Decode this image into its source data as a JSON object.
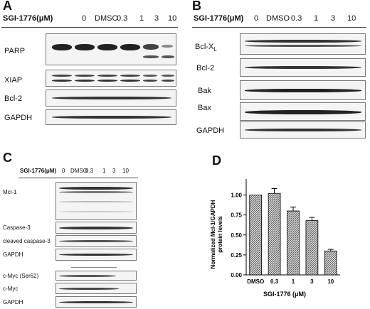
{
  "panel_a": {
    "letter": "A",
    "treatment_label": "SGI-1776(μM)",
    "lanes": [
      "0",
      "DMSO",
      "0.3",
      "1",
      "3",
      "10"
    ],
    "proteins": [
      "PARP",
      "XIAP",
      "Bcl-2",
      "GAPDH"
    ]
  },
  "panel_b": {
    "letter": "B",
    "treatment_label": "SGI-1776(μM)",
    "lanes": [
      "0",
      "DMSO",
      "0.3",
      "1",
      "3",
      "10"
    ],
    "proteins": [
      "Bcl-X",
      "Bcl-2",
      "Bak",
      "Bax",
      "GAPDH"
    ],
    "bclx_subscript": "L"
  },
  "panel_c": {
    "letter": "C",
    "treatment_label": "SGI-1776(μM)",
    "lanes": [
      "0",
      "DMSO",
      "0.3",
      "1",
      "3",
      "10"
    ],
    "proteins": [
      "Mcl-1",
      "Caspase-3",
      "cleaved caspase-3",
      "GAPDH",
      "c-Myc (Ser62)",
      "c-Myc",
      "GAPDH"
    ]
  },
  "panel_d": {
    "letter": "D"
  },
  "chart_data": {
    "type": "bar",
    "categories": [
      "DMSO",
      "0.3",
      "1",
      "3",
      "10"
    ],
    "values": [
      1.0,
      1.02,
      0.8,
      0.68,
      0.3
    ],
    "errors": [
      0.0,
      0.06,
      0.05,
      0.04,
      0.02
    ],
    "ylabel": "Normalized Mcl-1/GAPDH protein levels",
    "xlabel": "SGI-1776 (μM)",
    "yticks": [
      "0.00",
      "0.25",
      "0.50",
      "0.75",
      "1.00"
    ],
    "ylim": [
      0,
      1.2
    ],
    "grid": false,
    "bar_fill": "hatched",
    "colors": {
      "bar": "#888888",
      "edge": "#000000"
    }
  }
}
